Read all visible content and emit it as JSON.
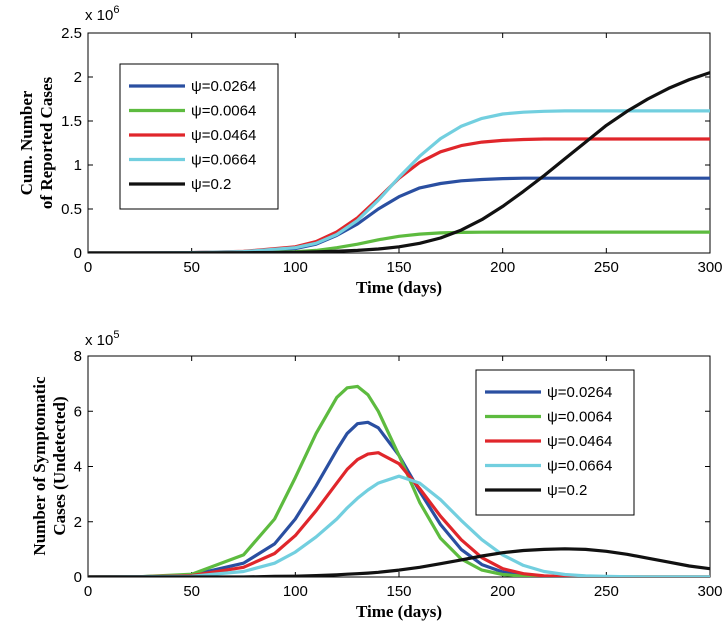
{
  "chart_data": [
    {
      "type": "line",
      "xlabel": "Time (days)",
      "ylabel_lines": [
        "Cum. Number",
        "of Reported Cases"
      ],
      "exponent_label": {
        "base": "x 10",
        "power": "6"
      },
      "xlim": [
        0,
        300
      ],
      "ylim": [
        0,
        2.5
      ],
      "xticks": [
        "0",
        "50",
        "100",
        "150",
        "200",
        "250",
        "300"
      ],
      "yticks": [
        "0",
        "0.5",
        "1",
        "1.5",
        "2",
        "2.5"
      ],
      "x": [
        0,
        25,
        50,
        75,
        100,
        110,
        120,
        130,
        140,
        150,
        160,
        170,
        180,
        190,
        200,
        210,
        220,
        230,
        240,
        250,
        260,
        270,
        280,
        290,
        300
      ],
      "legend_position": "upper-left",
      "series": [
        {
          "name": "ψ=0.0264",
          "color": "#2a4fa1",
          "values": [
            0,
            0.001,
            0.004,
            0.015,
            0.05,
            0.1,
            0.2,
            0.33,
            0.5,
            0.64,
            0.74,
            0.79,
            0.82,
            0.835,
            0.845,
            0.85,
            0.85,
            0.85,
            0.85,
            0.85,
            0.85,
            0.85,
            0.85,
            0.85,
            0.85
          ]
        },
        {
          "name": "ψ=0.0064",
          "color": "#5dbb3f",
          "values": [
            0,
            0.0003,
            0.001,
            0.004,
            0.015,
            0.03,
            0.06,
            0.1,
            0.15,
            0.19,
            0.215,
            0.228,
            0.234,
            0.236,
            0.237,
            0.237,
            0.238,
            0.238,
            0.238,
            0.238,
            0.238,
            0.238,
            0.238,
            0.238,
            0.238
          ]
        },
        {
          "name": "ψ=0.0464",
          "color": "#e0262b",
          "values": [
            0,
            0.001,
            0.005,
            0.018,
            0.07,
            0.13,
            0.24,
            0.4,
            0.62,
            0.85,
            1.03,
            1.15,
            1.22,
            1.26,
            1.28,
            1.29,
            1.295,
            1.295,
            1.295,
            1.295,
            1.295,
            1.295,
            1.295,
            1.295,
            1.295
          ]
        },
        {
          "name": "ψ=0.0664",
          "color": "#72cfdf",
          "values": [
            0,
            0.001,
            0.004,
            0.016,
            0.06,
            0.11,
            0.21,
            0.37,
            0.6,
            0.86,
            1.1,
            1.3,
            1.44,
            1.53,
            1.58,
            1.6,
            1.61,
            1.615,
            1.615,
            1.615,
            1.615,
            1.615,
            1.615,
            1.615,
            1.615
          ]
        },
        {
          "name": "ψ=0.2",
          "color": "#111111",
          "values": [
            0,
            0,
            0.001,
            0.003,
            0.008,
            0.013,
            0.02,
            0.03,
            0.045,
            0.07,
            0.11,
            0.17,
            0.26,
            0.38,
            0.53,
            0.7,
            0.88,
            1.07,
            1.26,
            1.45,
            1.61,
            1.75,
            1.87,
            1.97,
            2.05
          ]
        }
      ]
    },
    {
      "type": "line",
      "xlabel": "Time (days)",
      "ylabel_lines": [
        "Number of Symptomatic",
        "Cases (Undetected)"
      ],
      "exponent_label": {
        "base": "x 10",
        "power": "5"
      },
      "xlim": [
        0,
        300
      ],
      "ylim": [
        0,
        8
      ],
      "xticks": [
        "0",
        "50",
        "100",
        "150",
        "200",
        "250",
        "300"
      ],
      "yticks": [
        "0",
        "2",
        "4",
        "6",
        "8"
      ],
      "x": [
        0,
        25,
        50,
        75,
        90,
        100,
        110,
        120,
        125,
        130,
        135,
        140,
        150,
        160,
        170,
        180,
        190,
        200,
        210,
        220,
        230,
        240,
        250,
        260,
        270,
        280,
        290,
        300
      ],
      "legend_position": "right",
      "series": [
        {
          "name": "ψ=0.0264",
          "color": "#2a4fa1",
          "values": [
            0,
            0.01,
            0.07,
            0.5,
            1.2,
            2.1,
            3.3,
            4.6,
            5.2,
            5.55,
            5.6,
            5.4,
            4.4,
            3.1,
            1.9,
            1.0,
            0.45,
            0.18,
            0.07,
            0.02,
            0.01,
            0,
            0,
            0,
            0,
            0,
            0,
            0
          ]
        },
        {
          "name": "ψ=0.0064",
          "color": "#5dbb3f",
          "values": [
            0,
            0.01,
            0.1,
            0.8,
            2.1,
            3.6,
            5.2,
            6.5,
            6.85,
            6.9,
            6.6,
            6.0,
            4.4,
            2.7,
            1.4,
            0.65,
            0.25,
            0.09,
            0.03,
            0.01,
            0,
            0,
            0,
            0,
            0,
            0,
            0,
            0
          ]
        },
        {
          "name": "ψ=0.0464",
          "color": "#e0262b",
          "values": [
            0,
            0.01,
            0.05,
            0.35,
            0.85,
            1.5,
            2.4,
            3.4,
            3.9,
            4.25,
            4.45,
            4.5,
            4.1,
            3.2,
            2.2,
            1.35,
            0.7,
            0.3,
            0.12,
            0.04,
            0.01,
            0,
            0,
            0,
            0,
            0,
            0,
            0
          ]
        },
        {
          "name": "ψ=0.0664",
          "color": "#72cfdf",
          "values": [
            0,
            0.01,
            0.03,
            0.2,
            0.5,
            0.9,
            1.45,
            2.1,
            2.5,
            2.85,
            3.15,
            3.4,
            3.65,
            3.4,
            2.8,
            2.05,
            1.35,
            0.8,
            0.42,
            0.2,
            0.09,
            0.04,
            0.02,
            0.01,
            0,
            0,
            0,
            0
          ]
        },
        {
          "name": "ψ=0.2",
          "color": "#111111",
          "values": [
            0,
            0,
            0,
            0,
            0.02,
            0.03,
            0.05,
            0.08,
            0.1,
            0.12,
            0.14,
            0.17,
            0.25,
            0.35,
            0.48,
            0.62,
            0.76,
            0.88,
            0.96,
            1.0,
            1.02,
            1.0,
            0.93,
            0.82,
            0.68,
            0.54,
            0.4,
            0.3
          ]
        }
      ]
    }
  ]
}
